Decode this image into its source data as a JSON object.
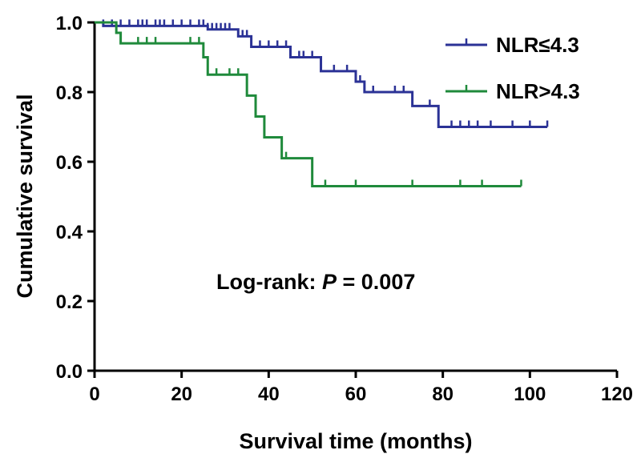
{
  "chart_data": {
    "type": "line",
    "subtype": "kaplan-meier",
    "title": "",
    "xlabel": "Survival time (months)",
    "ylabel": "Cumulative survival",
    "xlim": [
      0,
      120
    ],
    "ylim": [
      0.0,
      1.0
    ],
    "xticks": [
      "0",
      "20",
      "40",
      "60",
      "80",
      "100",
      "120"
    ],
    "yticks": [
      "0.0",
      "0.2",
      "0.4",
      "0.6",
      "0.8",
      "1.0"
    ],
    "legend_position": "top-right",
    "annotation": {
      "prefix": "Log-rank: ",
      "p_symbol": "P",
      "suffix": " = 0.007"
    },
    "series": [
      {
        "name": "NLR≤4.3",
        "color": "#2B3296",
        "steps": [
          [
            0,
            1.0
          ],
          [
            2,
            0.99
          ],
          [
            26,
            0.98
          ],
          [
            33,
            0.96
          ],
          [
            36,
            0.93
          ],
          [
            45,
            0.9
          ],
          [
            52,
            0.86
          ],
          [
            60,
            0.83
          ],
          [
            62,
            0.8
          ],
          [
            68,
            0.8
          ],
          [
            73,
            0.76
          ],
          [
            79,
            0.7
          ],
          [
            104,
            0.7
          ]
        ],
        "censor_times": [
          2,
          4,
          6,
          8,
          10,
          11,
          12,
          14,
          15,
          16,
          18,
          20,
          22,
          24,
          25,
          26,
          27,
          28,
          29,
          30,
          31,
          34,
          35,
          38,
          40,
          42,
          44,
          47,
          48,
          50,
          55,
          58,
          61,
          64,
          69,
          71,
          77,
          82,
          84,
          86,
          88,
          91,
          96,
          100,
          104
        ]
      },
      {
        "name": "NLR>4.3",
        "color": "#1F8A3B",
        "steps": [
          [
            0,
            1.0
          ],
          [
            5,
            0.97
          ],
          [
            6,
            0.94
          ],
          [
            25,
            0.9
          ],
          [
            26,
            0.85
          ],
          [
            35,
            0.79
          ],
          [
            37,
            0.73
          ],
          [
            39,
            0.67
          ],
          [
            43,
            0.61
          ],
          [
            50,
            0.53
          ],
          [
            98,
            0.53
          ]
        ],
        "censor_times": [
          10,
          12,
          14,
          22,
          24,
          28,
          31,
          33,
          44,
          53,
          60,
          73,
          84,
          89,
          98
        ]
      }
    ]
  }
}
